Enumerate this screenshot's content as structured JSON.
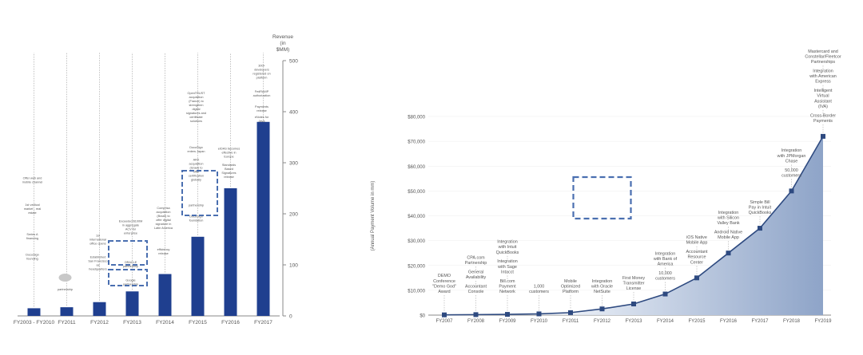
{
  "chart_data": [
    {
      "type": "bar",
      "ylabel": "Revenue (in $MM)",
      "ylim": [
        0,
        500
      ],
      "yticks": [
        0,
        100,
        200,
        300,
        400,
        500
      ],
      "categories": [
        "FY2003 - FY2010",
        "FY2011",
        "FY2012",
        "FY2013",
        "FY2014",
        "FY2015",
        "FY2016",
        "FY2017"
      ],
      "values": [
        15,
        17,
        27,
        48,
        82,
        155,
        250,
        380
      ],
      "bar_color": "#1f3f8f",
      "annotations": [
        {
          "category": "FY2003 - FY2010",
          "text": "Offer web and mobile channel",
          "level": 0.52
        },
        {
          "category": "FY2003 - FY2010",
          "text": "1st vertical market - real estate",
          "level": 0.4
        },
        {
          "category": "FY2003 - FY2010",
          "text": "Series A financing",
          "level": 0.3
        },
        {
          "category": "FY2003 - FY2010",
          "text": "DocuSign founding",
          "level": 0.22
        },
        {
          "category": "FY2011",
          "text": "partnership",
          "level": 0.1
        },
        {
          "category": "FY2012",
          "text": "1st international office opens",
          "level": 0.28
        },
        {
          "category": "FY2012",
          "text": "Established San Francisco as headquarters",
          "level": 0.18
        },
        {
          "category": "FY2013",
          "text": "Exceeded $100M in aggregate ACV for enterprise",
          "level": 0.32
        },
        {
          "category": "FY2013",
          "text": "ORACLE partnership",
          "level": 0.19
        },
        {
          "category": "FY2013",
          "text": "Google partnership",
          "level": 0.12
        },
        {
          "category": "FY2014",
          "text": "Comprisa acquisition (Brazil) to offer digital signature in Latin America",
          "level": 0.34
        },
        {
          "category": "FY2014",
          "text": "efficiency release",
          "level": 0.24
        },
        {
          "category": "FY2015",
          "text": "OpenTRUST acquisition (France) to strengthen digital signatures and certificate solutions",
          "level": 0.76
        },
        {
          "category": "FY2015",
          "text": "DocuSign enters Japan",
          "level": 0.64
        },
        {
          "category": "FY2015",
          "text": "ARX acquisition (Israel) to offer certification globally",
          "level": 0.53
        },
        {
          "category": "FY2015",
          "text": "partnership",
          "level": 0.43
        },
        {
          "category": "FY2015",
          "text": "DocuSign foundation",
          "level": 0.37
        },
        {
          "category": "FY2016",
          "text": "eIDAS becomes effective in Europe",
          "level": 0.62
        },
        {
          "category": "FY2016",
          "text": "Standards Based Signatures release",
          "level": 0.54
        },
        {
          "category": "FY2017",
          "text": "300+ developers registered on platform",
          "level": 0.93
        },
        {
          "category": "FY2017",
          "text": "FedRAMP authorization",
          "level": 0.86
        },
        {
          "category": "FY2017",
          "text": "Payments release",
          "level": 0.8
        },
        {
          "category": "FY2017",
          "text": "eNotes for Java",
          "level": 0.76
        }
      ]
    },
    {
      "type": "area",
      "ylabel": "(Annual Payment Volume in mm)",
      "ylim": [
        0,
        80000
      ],
      "yticks": [
        "$0",
        "$10,000",
        "$20,000",
        "$30,000",
        "$40,000",
        "$50,000",
        "$60,000",
        "$70,000",
        "$80,000"
      ],
      "x": [
        "FY2007",
        "FY2008",
        "FY2009",
        "FY2010",
        "FY2011",
        "FY2012",
        "FY2013",
        "FY2014",
        "FY2015",
        "FY2016",
        "FY2017",
        "FY2018",
        "FY2019"
      ],
      "values": [
        100,
        200,
        300,
        500,
        1000,
        2500,
        4500,
        8500,
        15000,
        25000,
        35000,
        50000,
        72000
      ],
      "line_color": "#2e4a80",
      "annotations": [
        {
          "x": "FY2007",
          "text": "DEMO Conference \"Demo God\" Award"
        },
        {
          "x": "FY2008",
          "text": "Accountant Console"
        },
        {
          "x": "FY2008",
          "text": "General Availability"
        },
        {
          "x": "FY2008",
          "text": "CPA.com Partnership"
        },
        {
          "x": "FY2009",
          "text": "Bill.com Payment Network"
        },
        {
          "x": "FY2009",
          "text": "Integration with Sage Intacct"
        },
        {
          "x": "FY2009",
          "text": "Integration with Intuit QuickBooks"
        },
        {
          "x": "FY2010",
          "text": "1,000 customers"
        },
        {
          "x": "FY2011",
          "text": "Mobile Optimized Platform"
        },
        {
          "x": "FY2012",
          "text": "Integration with Oracle NetSuite"
        },
        {
          "x": "FY2013",
          "text": "First Money Transmitter License"
        },
        {
          "x": "FY2014",
          "text": "10,000 customers"
        },
        {
          "x": "FY2014",
          "text": "Integration with Bank of America"
        },
        {
          "x": "FY2015",
          "text": "Accountant Resource Center"
        },
        {
          "x": "FY2015",
          "text": "iOS Native Mobile App"
        },
        {
          "x": "FY2016",
          "text": "Android Native Mobile App"
        },
        {
          "x": "FY2016",
          "text": "Integration with Silicon Valley Bank"
        },
        {
          "x": "FY2017",
          "text": "Simple Bill Pay in Intuit QuickBooks"
        },
        {
          "x": "FY2018",
          "text": "50,000 customers"
        },
        {
          "x": "FY2018",
          "text": "Integration with JPMorgan Chase"
        },
        {
          "x": "FY2019",
          "text": "Cross-Border Payments"
        },
        {
          "x": "FY2019",
          "text": "Intelligent Virtual Assistant (IVA)"
        },
        {
          "x": "FY2019",
          "text": "Integration with American Express"
        },
        {
          "x": "FY2019",
          "text": "Mastercard and Constellar/Fleetcor Partnerships"
        }
      ]
    }
  ]
}
